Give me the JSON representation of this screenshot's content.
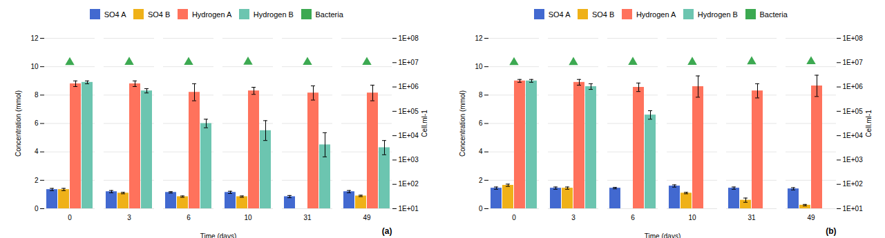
{
  "chart_data": [
    {
      "type": "bar",
      "xlabel": "Time (days)",
      "ylabel": "Concentration (mmol)",
      "y2label": "Cell.ml-1",
      "annotations": [
        "(a)"
      ],
      "categories": [
        0,
        3,
        6,
        10,
        31,
        49
      ],
      "series": [
        {
          "name": "SO4 A",
          "values": [
            1.35,
            1.2,
            1.15,
            1.15,
            0.85,
            1.2
          ],
          "errors": [
            0.08,
            0.08,
            0.05,
            0.08,
            0.08,
            0.08
          ]
        },
        {
          "name": "SO4 B",
          "values": [
            1.35,
            1.1,
            0.85,
            0.85,
            0.0,
            0.9
          ],
          "errors": [
            0.08,
            0.05,
            0.05,
            0.05,
            0.0,
            0.05
          ]
        },
        {
          "name": "Hydrogen A",
          "values": [
            8.8,
            8.8,
            8.2,
            8.3,
            8.15,
            8.15
          ],
          "errors": [
            0.2,
            0.2,
            0.6,
            0.25,
            0.5,
            0.55
          ]
        },
        {
          "name": "Hydrogen B",
          "values": [
            8.9,
            8.3,
            6.0,
            5.5,
            4.5,
            4.3
          ],
          "errors": [
            0.1,
            0.15,
            0.3,
            0.7,
            0.85,
            0.5
          ]
        },
        {
          "name": "Bacteria",
          "type": "scatter",
          "marker": "triangle",
          "axis": "y2",
          "values": [
            10200000,
            10500000,
            10400000,
            10600000,
            10400000,
            10400000
          ]
        }
      ],
      "ylim": [
        0,
        12
      ],
      "yticks": [
        0,
        2,
        4,
        6,
        8,
        10,
        12
      ],
      "y2lim": [
        10,
        100000000
      ],
      "y2ticks": [
        {
          "value": 10,
          "label": "1E+01"
        },
        {
          "value": 100,
          "label": "1E+02"
        },
        {
          "value": 1000,
          "label": "1E+03"
        },
        {
          "value": 10000,
          "label": "1E+04"
        },
        {
          "value": 100000,
          "label": "1E+05"
        },
        {
          "value": 1000000,
          "label": "1E+06"
        },
        {
          "value": 10000000,
          "label": "1E+07"
        },
        {
          "value": 100000000,
          "label": "1E+08"
        }
      ],
      "log": "y2",
      "grid": true,
      "legend": "top"
    },
    {
      "type": "bar",
      "xlabel": "Time (days)",
      "ylabel": "Concentration (mmol)",
      "y2label": "Cell.ml-1",
      "annotations": [
        "(b)"
      ],
      "categories": [
        0,
        3,
        6,
        10,
        31,
        49
      ],
      "series": [
        {
          "name": "SO4 A",
          "values": [
            1.45,
            1.45,
            1.45,
            1.6,
            1.45,
            1.4
          ],
          "errors": [
            0.08,
            0.08,
            0.05,
            0.08,
            0.08,
            0.08
          ]
        },
        {
          "name": "SO4 B",
          "values": [
            1.65,
            1.45,
            0.0,
            1.1,
            0.6,
            0.25
          ],
          "errors": [
            0.08,
            0.08,
            0.0,
            0.05,
            0.15,
            0.05
          ]
        },
        {
          "name": "Hydrogen A",
          "values": [
            9.0,
            8.9,
            8.55,
            8.6,
            8.3,
            8.65
          ],
          "errors": [
            0.1,
            0.2,
            0.3,
            0.75,
            0.5,
            0.75
          ]
        },
        {
          "name": "Hydrogen B",
          "values": [
            9.0,
            8.6,
            6.6,
            0.0,
            0.0,
            0.0
          ],
          "errors": [
            0.1,
            0.2,
            0.3,
            0.0,
            0.0,
            0.0
          ]
        },
        {
          "name": "Bacteria",
          "type": "scatter",
          "marker": "triangle",
          "axis": "y2",
          "values": [
            10200000,
            10300000,
            10500000,
            10500000,
            11000000,
            11100000
          ]
        }
      ],
      "ylim": [
        0,
        12
      ],
      "yticks": [
        0,
        2,
        4,
        6,
        8,
        10,
        12
      ],
      "y2lim": [
        10,
        100000000
      ],
      "y2ticks": [
        {
          "value": 10,
          "label": "1E+01"
        },
        {
          "value": 100,
          "label": "1E+02"
        },
        {
          "value": 1000,
          "label": "1E+03"
        },
        {
          "value": 10000,
          "label": "1E+04"
        },
        {
          "value": 100000,
          "label": "1E+05"
        },
        {
          "value": 1000000,
          "label": "1E+06"
        },
        {
          "value": 10000000,
          "label": "1E+07"
        },
        {
          "value": 100000000,
          "label": "1E+08"
        }
      ],
      "log": "y2",
      "grid": true,
      "legend": "top"
    }
  ]
}
